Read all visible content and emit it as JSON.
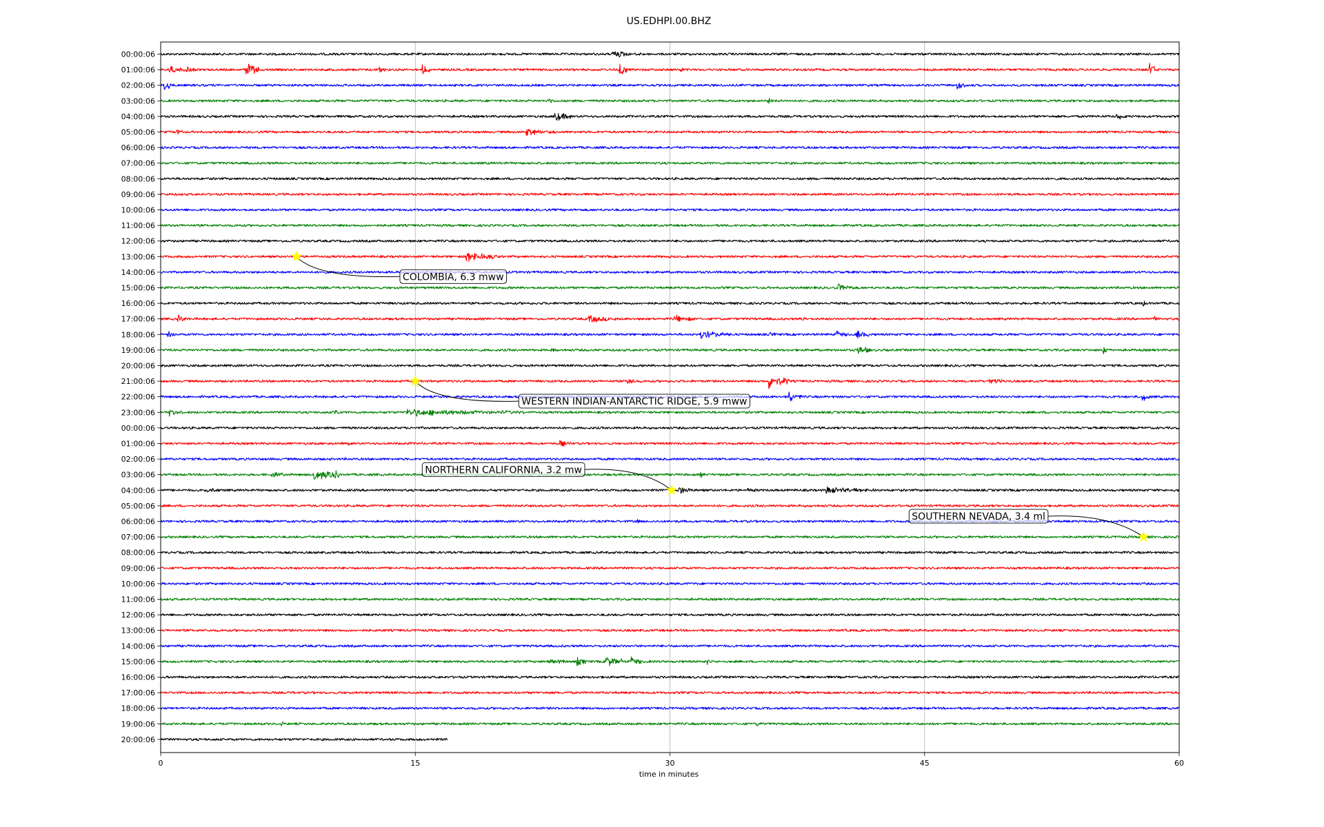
{
  "chart_data": {
    "type": "line",
    "title": "US.EDHPI.00.BHZ",
    "xlabel": "time in minutes",
    "xlim": [
      0,
      60
    ],
    "x_ticks": [
      "0",
      "15",
      "30",
      "45",
      "60"
    ],
    "x_tick_values": [
      0,
      15,
      30,
      45,
      60
    ],
    "grid": "vertical",
    "trace_colors": [
      "#000000",
      "#ff0000",
      "#0000ff",
      "#008000"
    ],
    "marker_color": "#ffff00",
    "rows": [
      "00:00:06",
      "01:00:06",
      "02:00:06",
      "03:00:06",
      "04:00:06",
      "05:00:06",
      "06:00:06",
      "07:00:06",
      "08:00:06",
      "09:00:06",
      "10:00:06",
      "11:00:06",
      "12:00:06",
      "13:00:06",
      "14:00:06",
      "15:00:06",
      "16:00:06",
      "17:00:06",
      "18:00:06",
      "19:00:06",
      "20:00:06",
      "21:00:06",
      "22:00:06",
      "23:00:06",
      "00:00:06",
      "01:00:06",
      "02:00:06",
      "03:00:06",
      "04:00:06",
      "05:00:06",
      "06:00:06",
      "07:00:06",
      "08:00:06",
      "09:00:06",
      "10:00:06",
      "11:00:06",
      "12:00:06",
      "13:00:06",
      "14:00:06",
      "15:00:06",
      "16:00:06",
      "17:00:06",
      "18:00:06",
      "19:00:06",
      "20:00:06"
    ],
    "last_row_end_minute": 16.9,
    "events": [
      {
        "label": "COLOMBIA, 6.3 mww",
        "row": 13,
        "minute": 8.0
      },
      {
        "label": "WESTERN INDIAN-ANTARCTIC RIDGE, 5.9 mww",
        "row": 21,
        "minute": 15.0
      },
      {
        "label": "NORTHERN CALIFORNIA, 3.2 mw",
        "row": 28,
        "minute": 30.1
      },
      {
        "label": "SOUTHERN NEVADA, 3.4 ml",
        "row": 31,
        "minute": 57.9
      }
    ],
    "bursts": [
      [
        0,
        26.6,
        1.0,
        9
      ],
      [
        0,
        28.0,
        0.6,
        5
      ],
      [
        1,
        0.5,
        1.2,
        7
      ],
      [
        1,
        1.5,
        0.6,
        7
      ],
      [
        1,
        5.0,
        0.8,
        14
      ],
      [
        1,
        12.8,
        0.5,
        8
      ],
      [
        1,
        15.4,
        0.6,
        9
      ],
      [
        1,
        27.0,
        0.5,
        18
      ],
      [
        1,
        30.6,
        0.3,
        8
      ],
      [
        1,
        58.2,
        0.4,
        14
      ],
      [
        2,
        0.2,
        0.4,
        12
      ],
      [
        2,
        46.9,
        0.5,
        9
      ],
      [
        3,
        22.9,
        0.3,
        8
      ],
      [
        3,
        35.7,
        0.7,
        7
      ],
      [
        4,
        11.5,
        0.3,
        5
      ],
      [
        4,
        23.2,
        1.0,
        10
      ],
      [
        4,
        56.3,
        0.6,
        9
      ],
      [
        5,
        0.9,
        0.5,
        8
      ],
      [
        5,
        21.5,
        1.8,
        7
      ],
      [
        13,
        18.0,
        1.8,
        11
      ],
      [
        15,
        39.8,
        1.0,
        9
      ],
      [
        16,
        57.8,
        0.4,
        6
      ],
      [
        17,
        1.0,
        0.5,
        8
      ],
      [
        17,
        25.2,
        1.6,
        8
      ],
      [
        17,
        30.2,
        1.4,
        8
      ],
      [
        17,
        37.8,
        0.4,
        8
      ],
      [
        17,
        58.5,
        0.3,
        6
      ],
      [
        18,
        0.4,
        0.6,
        8
      ],
      [
        18,
        31.8,
        1.8,
        8
      ],
      [
        18,
        35.9,
        0.3,
        7
      ],
      [
        18,
        39.8,
        0.6,
        8
      ],
      [
        18,
        41.0,
        0.8,
        9
      ],
      [
        19,
        23.0,
        0.3,
        8
      ],
      [
        19,
        41.0,
        0.8,
        10
      ],
      [
        19,
        55.5,
        0.3,
        10
      ],
      [
        21,
        27.5,
        0.6,
        9
      ],
      [
        21,
        35.8,
        1.2,
        13
      ],
      [
        21,
        48.8,
        0.8,
        7
      ],
      [
        22,
        37.0,
        0.7,
        11
      ],
      [
        22,
        57.8,
        0.5,
        10
      ],
      [
        23,
        0.5,
        0.8,
        7
      ],
      [
        23,
        10.2,
        0.3,
        8
      ],
      [
        23,
        14.5,
        7.0,
        7
      ],
      [
        25,
        11.0,
        0.3,
        6
      ],
      [
        25,
        23.5,
        0.8,
        7
      ],
      [
        27,
        6.5,
        0.8,
        8
      ],
      [
        27,
        9.0,
        1.5,
        12
      ],
      [
        27,
        10.2,
        0.3,
        12
      ],
      [
        27,
        31.8,
        0.3,
        6
      ],
      [
        28,
        2.5,
        1.3,
        6
      ],
      [
        28,
        30.5,
        0.8,
        9
      ],
      [
        28,
        34.5,
        0.6,
        6
      ],
      [
        28,
        39.2,
        3.0,
        7
      ],
      [
        30,
        28.0,
        0.3,
        5
      ],
      [
        39,
        22.8,
        1.0,
        7
      ],
      [
        39,
        24.5,
        0.6,
        9
      ],
      [
        39,
        26.2,
        1.0,
        11
      ],
      [
        39,
        27.7,
        0.6,
        10
      ],
      [
        39,
        32.2,
        0.4,
        7
      ],
      [
        43,
        7.1,
        0.2,
        6
      ],
      [
        43,
        35.1,
        0.5,
        5
      ]
    ]
  }
}
